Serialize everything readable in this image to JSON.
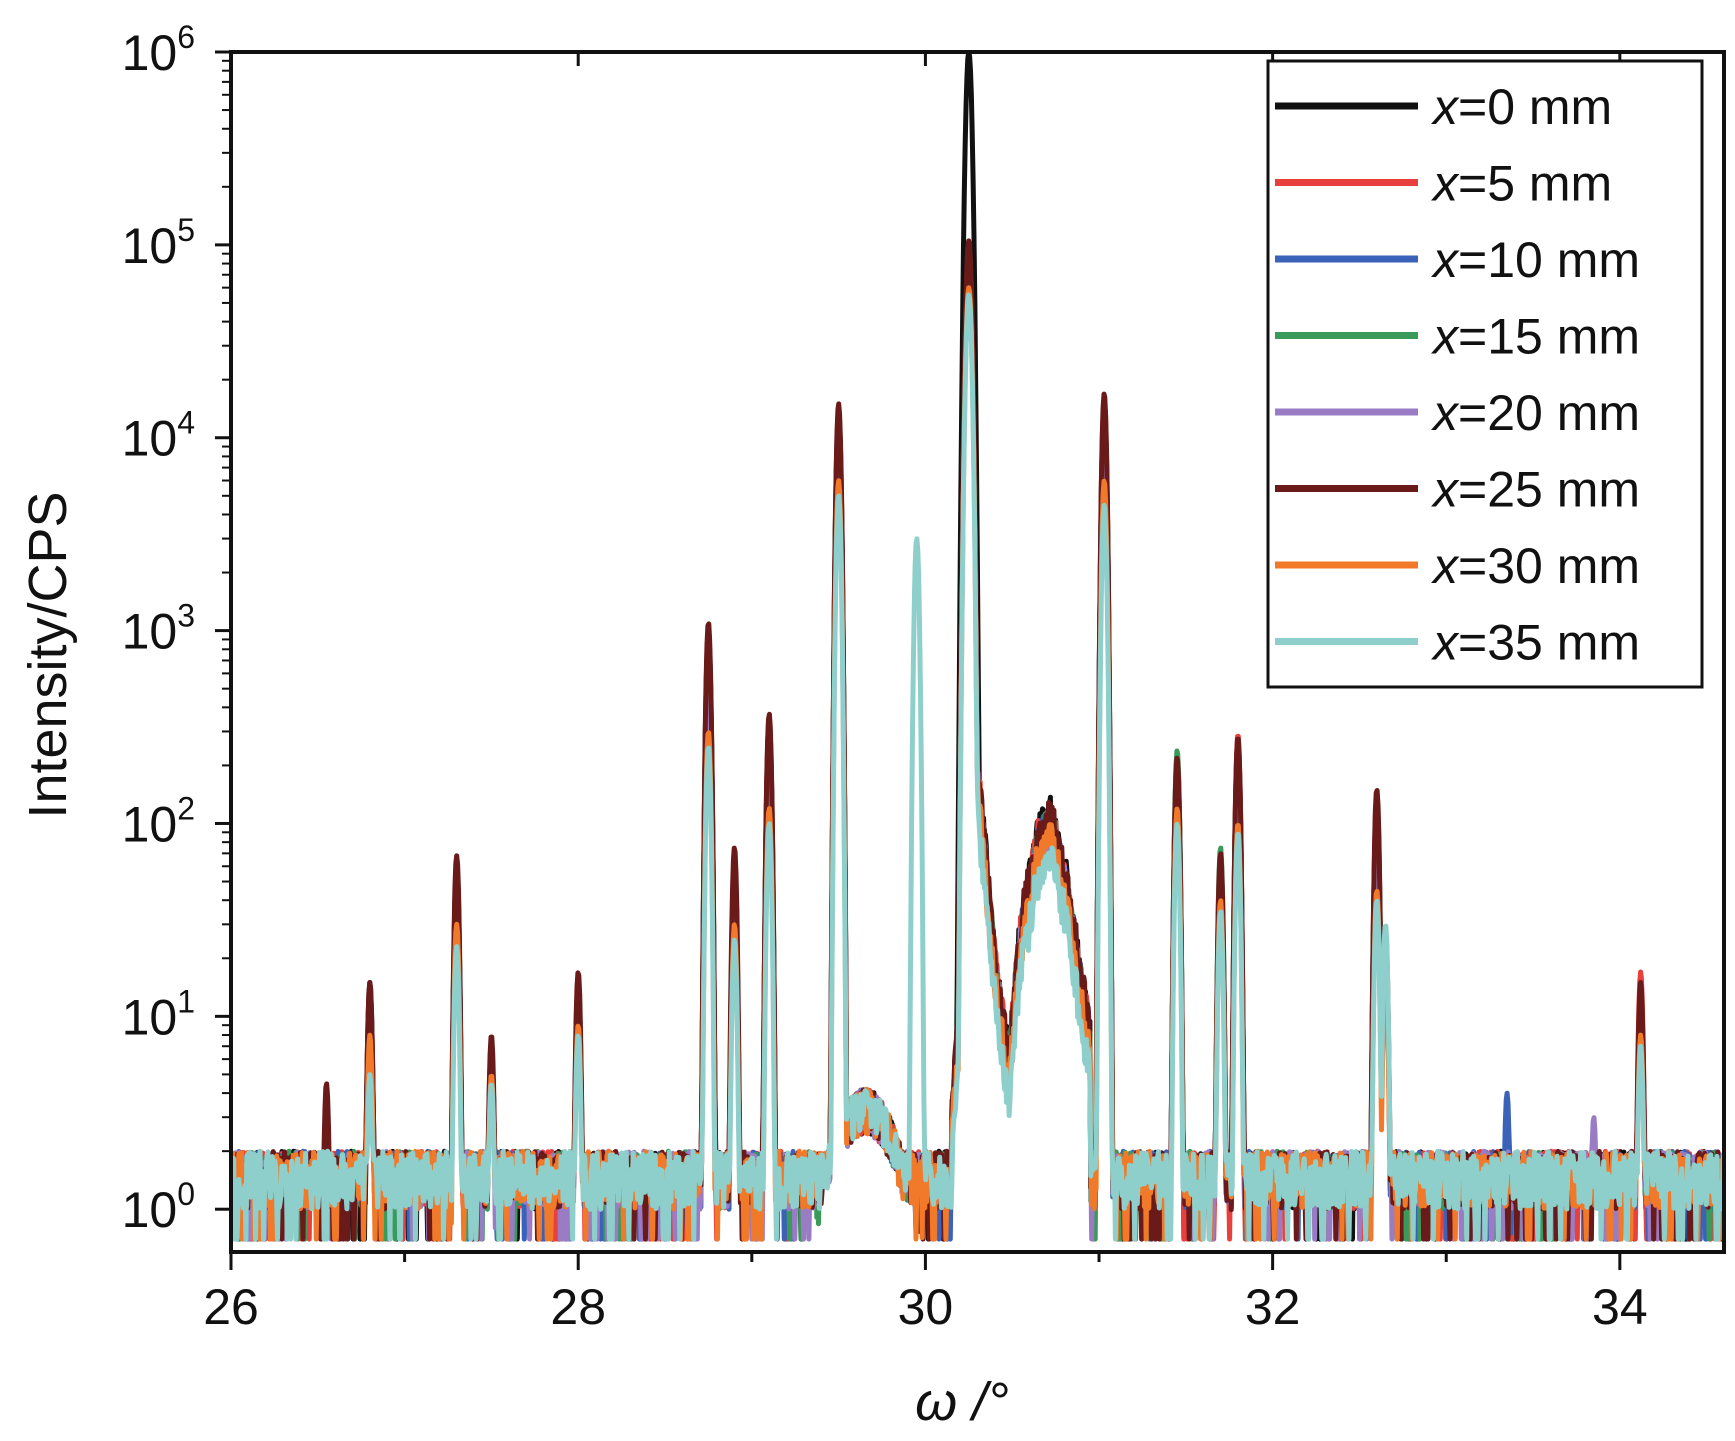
{
  "chart_data": {
    "type": "line",
    "xlabel": "ω /°",
    "ylabel": "Intensity/CPS",
    "xlim": [
      26,
      34.6
    ],
    "ylim": [
      0.6,
      1000000
    ],
    "y_scale": "log",
    "x_ticks": [
      26,
      28,
      30,
      32,
      34
    ],
    "x_tick_labels": [
      "26",
      "28",
      "30",
      "32",
      "34"
    ],
    "x_minor_ticks": [
      27,
      29,
      31,
      33
    ],
    "y_ticks": [
      {
        "value": 1,
        "base": "10",
        "exp": "0"
      },
      {
        "value": 10,
        "base": "10",
        "exp": "1"
      },
      {
        "value": 100,
        "base": "10",
        "exp": "2"
      },
      {
        "value": 1000,
        "base": "10",
        "exp": "3"
      },
      {
        "value": 10000,
        "base": "10",
        "exp": "4"
      },
      {
        "value": 100000,
        "base": "10",
        "exp": "5"
      },
      {
        "value": 1000000,
        "base": "10",
        "exp": "6"
      }
    ],
    "legend_position": "top-right",
    "baseline_noise": {
      "low": 1.0,
      "high": 2.0
    },
    "central_hump": {
      "x": [
        30.15,
        30.3,
        30.4,
        30.48,
        30.55,
        30.65,
        30.72,
        30.8,
        30.88,
        30.95
      ],
      "y": [
        3,
        200,
        20,
        6,
        30,
        90,
        110,
        60,
        20,
        8
      ]
    },
    "series": [
      {
        "name": "x=0 mm",
        "var": "x",
        "rest": "=0 mm",
        "color": "#111111",
        "scale": 1.0,
        "peaks": [
          [
            26.8,
            15
          ],
          [
            27.3,
            60
          ],
          [
            27.5,
            7
          ],
          [
            28.0,
            15
          ],
          [
            28.75,
            1000
          ],
          [
            28.9,
            60
          ],
          [
            29.1,
            350
          ],
          [
            29.5,
            14000
          ],
          [
            30.25,
            1000000
          ],
          [
            31.03,
            15000
          ],
          [
            31.45,
            220
          ],
          [
            31.7,
            65
          ],
          [
            31.8,
            270
          ],
          [
            32.6,
            130
          ],
          [
            32.65,
            25
          ],
          [
            34.12,
            14
          ]
        ]
      },
      {
        "name": "x=5 mm",
        "var": "x",
        "rest": "=5 mm",
        "color": "#e8403c",
        "scale": 0.95,
        "peaks": [
          [
            26.8,
            14
          ],
          [
            27.3,
            58
          ],
          [
            27.5,
            7
          ],
          [
            28.0,
            14
          ],
          [
            28.75,
            950
          ],
          [
            28.9,
            55
          ],
          [
            29.1,
            330
          ],
          [
            29.5,
            13000
          ],
          [
            30.25,
            95000
          ],
          [
            31.03,
            16000
          ],
          [
            31.45,
            210
          ],
          [
            31.7,
            60
          ],
          [
            31.8,
            290
          ],
          [
            32.6,
            140
          ],
          [
            32.65,
            25
          ],
          [
            34.12,
            17
          ]
        ]
      },
      {
        "name": "x=10 mm",
        "var": "x",
        "rest": "=10 mm",
        "color": "#3a62b8",
        "scale": 0.9,
        "peaks": [
          [
            26.8,
            13
          ],
          [
            27.3,
            55
          ],
          [
            27.5,
            7
          ],
          [
            28.0,
            13
          ],
          [
            28.75,
            900
          ],
          [
            28.9,
            50
          ],
          [
            29.1,
            300
          ],
          [
            29.5,
            12000
          ],
          [
            30.25,
            90000
          ],
          [
            31.03,
            14000
          ],
          [
            31.45,
            200
          ],
          [
            31.7,
            60
          ],
          [
            31.8,
            250
          ],
          [
            32.6,
            120
          ],
          [
            32.65,
            22
          ],
          [
            33.35,
            4
          ],
          [
            34.12,
            13
          ]
        ]
      },
      {
        "name": "x=15 mm",
        "var": "x",
        "rest": "=15 mm",
        "color": "#3a9a5a",
        "scale": 0.9,
        "peaks": [
          [
            26.8,
            13
          ],
          [
            27.3,
            55
          ],
          [
            27.5,
            7
          ],
          [
            28.0,
            13
          ],
          [
            28.75,
            900
          ],
          [
            28.9,
            50
          ],
          [
            29.1,
            300
          ],
          [
            29.5,
            12500
          ],
          [
            30.25,
            90000
          ],
          [
            31.03,
            15000
          ],
          [
            31.45,
            240
          ],
          [
            31.7,
            75
          ],
          [
            31.8,
            250
          ],
          [
            32.6,
            125
          ],
          [
            32.65,
            22
          ],
          [
            34.12,
            13
          ]
        ]
      },
      {
        "name": "x=20 mm",
        "var": "x",
        "rest": "=20 mm",
        "color": "#9a7cc4",
        "scale": 0.85,
        "peaks": [
          [
            26.8,
            12
          ],
          [
            27.3,
            50
          ],
          [
            27.5,
            6
          ],
          [
            28.0,
            12
          ],
          [
            28.75,
            500
          ],
          [
            28.9,
            45
          ],
          [
            29.1,
            280
          ],
          [
            29.5,
            11000
          ],
          [
            30.25,
            85000
          ],
          [
            31.03,
            13000
          ],
          [
            31.45,
            200
          ],
          [
            31.7,
            55
          ],
          [
            31.8,
            230
          ],
          [
            32.6,
            115
          ],
          [
            32.65,
            20
          ],
          [
            33.85,
            3
          ],
          [
            34.12,
            12
          ]
        ]
      },
      {
        "name": "x=25 mm",
        "var": "x",
        "rest": "=25 mm",
        "color": "#6b1a1a",
        "scale": 1.0,
        "peaks": [
          [
            26.55,
            4.5
          ],
          [
            26.8,
            15
          ],
          [
            27.3,
            68
          ],
          [
            27.5,
            8
          ],
          [
            28.0,
            17
          ],
          [
            28.75,
            1100
          ],
          [
            28.9,
            75
          ],
          [
            29.1,
            370
          ],
          [
            29.5,
            15000
          ],
          [
            30.25,
            105000
          ],
          [
            31.03,
            17000
          ],
          [
            31.45,
            220
          ],
          [
            31.7,
            70
          ],
          [
            31.8,
            280
          ],
          [
            32.6,
            150
          ],
          [
            32.65,
            28
          ],
          [
            34.12,
            15
          ]
        ]
      },
      {
        "name": "x=30 mm",
        "var": "x",
        "rest": "=30 mm",
        "color": "#f07a2a",
        "scale": 0.75,
        "peaks": [
          [
            26.8,
            8
          ],
          [
            27.3,
            30
          ],
          [
            27.5,
            5
          ],
          [
            28.0,
            9
          ],
          [
            28.75,
            300
          ],
          [
            28.9,
            30
          ],
          [
            29.1,
            120
          ],
          [
            29.5,
            6000
          ],
          [
            30.25,
            60000
          ],
          [
            31.03,
            6000
          ],
          [
            31.45,
            120
          ],
          [
            31.7,
            40
          ],
          [
            31.8,
            100
          ],
          [
            32.6,
            45
          ],
          [
            32.65,
            18
          ],
          [
            34.12,
            8
          ]
        ]
      },
      {
        "name": "x=35 mm",
        "var": "x",
        "rest": "=35 mm",
        "color": "#8ecfcc",
        "scale": 0.6,
        "peaks": [
          [
            26.8,
            5
          ],
          [
            27.3,
            23
          ],
          [
            27.5,
            4.5
          ],
          [
            28.0,
            8
          ],
          [
            28.75,
            250
          ],
          [
            28.9,
            25
          ],
          [
            29.1,
            100
          ],
          [
            29.5,
            5000
          ],
          [
            29.95,
            3000
          ],
          [
            30.25,
            55000
          ],
          [
            31.03,
            4500
          ],
          [
            31.45,
            100
          ],
          [
            31.7,
            35
          ],
          [
            31.8,
            90
          ],
          [
            32.6,
            40
          ],
          [
            32.65,
            30
          ],
          [
            34.12,
            7
          ]
        ]
      }
    ]
  }
}
